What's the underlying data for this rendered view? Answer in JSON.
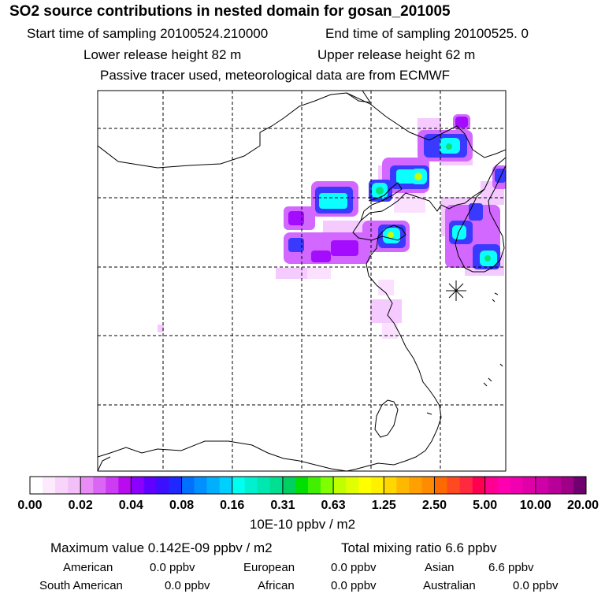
{
  "header": {
    "title": "SO2 source contributions in nested domain for gosan_201005",
    "start_sampling": "Start time of sampling 20100524.210000",
    "end_sampling": "End time of sampling 20100525.     0",
    "lower_release": "Lower release height   82 m",
    "upper_release": "Upper release height   62 m",
    "tracer_note": "Passive tracer used, meteorological data are from ECMWF"
  },
  "map": {
    "station_marker": "receptor-star-icon",
    "plume_colors": {
      "magenta_light": "#f0b0ff",
      "magenta": "#d060ff",
      "violet": "#a000ff",
      "blue": "#3030ff",
      "cyan": "#00ffff",
      "green": "#00e070",
      "yellow_green": "#c0ff00"
    }
  },
  "colorbar": {
    "labels": [
      "0.00",
      "0.02",
      "0.04",
      "0.08",
      "0.16",
      "0.31",
      "0.63",
      "1.25",
      "2.50",
      "5.00",
      "10.00",
      "20.00"
    ],
    "units": "10E-10 ppbv / m2",
    "segment_colors": [
      [
        "#ffffff",
        "#fdeafd",
        "#f8d4fb",
        "#f2bff8"
      ],
      [
        "#e98cf6",
        "#dc66f4",
        "#cc3cf2",
        "#b90af0"
      ],
      [
        "#8c00ff",
        "#6000ff",
        "#3c10ff",
        "#1e28ff"
      ],
      [
        "#0070ff",
        "#0090ff",
        "#00b0ff",
        "#00d0ff"
      ],
      [
        "#00fff0",
        "#00f0d0",
        "#00e8b0",
        "#00e090"
      ],
      [
        "#00d060",
        "#00e000",
        "#40f000",
        "#80ff00"
      ],
      [
        "#c0ff00",
        "#e0ff00",
        "#ffff00",
        "#fff000"
      ],
      [
        "#ffd700",
        "#ffb800",
        "#ffa000",
        "#ff8c00"
      ],
      [
        "#ff6a00",
        "#ff4a20",
        "#ff2a40",
        "#ff0050"
      ],
      [
        "#ff0090",
        "#ff00b0",
        "#f000b0",
        "#e000a8"
      ],
      [
        "#d000a8",
        "#b80098",
        "#a00088",
        "#700070"
      ]
    ]
  },
  "summary": {
    "max_value": "Maximum value  0.142E-09 ppbv / m2",
    "total_mixing": "Total mixing ratio        6.6 ppbv",
    "sources": [
      {
        "name": "American",
        "value": "0.0 ppbv"
      },
      {
        "name": "European",
        "value": "0.0 ppbv"
      },
      {
        "name": "Asian",
        "value": "6.6 ppbv"
      },
      {
        "name": "South American",
        "value": "0.0 ppbv"
      },
      {
        "name": "African",
        "value": "0.0 ppbv"
      },
      {
        "name": "Australian",
        "value": "0.0 ppbv"
      }
    ]
  }
}
